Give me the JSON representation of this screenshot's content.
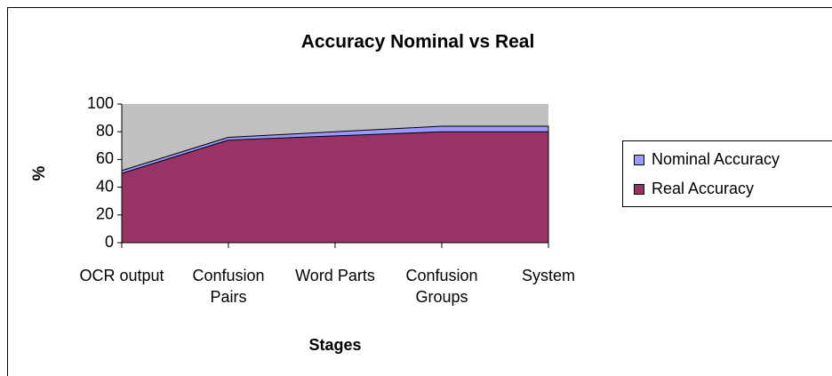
{
  "chart_data": {
    "type": "area",
    "title": "Accuracy Nominal vs Real",
    "x_label": "Stages",
    "y_label": "%",
    "categories": [
      "OCR output",
      "Confusion Pairs",
      "Word Parts",
      "Confusion Groups",
      "System"
    ],
    "series": [
      {
        "name": "Nominal Accuracy",
        "color": "#9999ff",
        "values": [
          52,
          76,
          80,
          84,
          84
        ]
      },
      {
        "name": "Real Accuracy",
        "color": "#993366",
        "values": [
          50,
          74,
          77,
          80,
          80
        ]
      }
    ],
    "ylim": [
      0,
      100
    ],
    "yticks": [
      0,
      20,
      40,
      60,
      80,
      100
    ],
    "plot_background": "#c0c0c0",
    "legend": "right"
  }
}
